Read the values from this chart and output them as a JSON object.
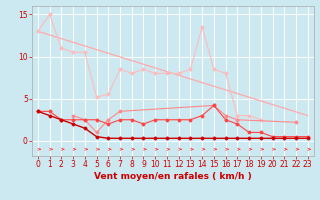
{
  "x": [
    0,
    1,
    2,
    3,
    4,
    5,
    6,
    7,
    8,
    9,
    10,
    11,
    12,
    13,
    14,
    15,
    16,
    17,
    18,
    19,
    20,
    21,
    22,
    23
  ],
  "line_lightest": [
    13.0,
    15.0,
    11.0,
    10.5,
    10.5,
    5.2,
    5.5,
    8.5,
    8.0,
    8.5,
    8.0,
    8.0,
    8.0,
    8.5,
    13.5,
    8.5,
    8.0,
    3.0,
    3.0,
    2.5,
    null,
    null,
    null,
    null
  ],
  "line_light": [
    null,
    null,
    null,
    3.0,
    2.5,
    1.0,
    2.5,
    3.5,
    null,
    null,
    null,
    null,
    null,
    null,
    null,
    4.2,
    3.0,
    2.5,
    null,
    null,
    null,
    null,
    2.2,
    null
  ],
  "line_medium": [
    3.5,
    3.5,
    2.5,
    2.5,
    2.5,
    2.5,
    2.0,
    2.5,
    2.5,
    2.0,
    2.5,
    2.5,
    2.5,
    2.5,
    3.0,
    4.2,
    2.5,
    2.0,
    1.0,
    1.0,
    0.5,
    0.5,
    0.5,
    0.5
  ],
  "line_trend_x": [
    0,
    23
  ],
  "line_trend_y": [
    13.0,
    3.0
  ],
  "line_dark": [
    3.5,
    3.0,
    2.5,
    2.0,
    1.5,
    0.5,
    0.3,
    0.3,
    0.3,
    0.3,
    0.3,
    0.3,
    0.3,
    0.3,
    0.3,
    0.3,
    0.3,
    0.3,
    0.3,
    0.3,
    0.3,
    0.3,
    0.3,
    0.3
  ],
  "xlabel": "Vent moyen/en rafales ( km/h )",
  "ylim": [
    -1.8,
    16
  ],
  "xlim": [
    -0.5,
    23.5
  ],
  "bg_color": "#cce8f0",
  "grid_color": "#ffffff",
  "color_lightest": "#ffbbbb",
  "color_light": "#ff8888",
  "color_medium": "#ff4444",
  "color_dark": "#cc0000",
  "color_trend": "#ffaaaa",
  "arrow_color": "#ff4444",
  "yticks": [
    0,
    5,
    10,
    15
  ],
  "xticks": [
    0,
    1,
    2,
    3,
    4,
    5,
    6,
    7,
    8,
    9,
    10,
    11,
    12,
    13,
    14,
    15,
    16,
    17,
    18,
    19,
    20,
    21,
    22,
    23
  ],
  "tick_fontsize": 5.5,
  "xlabel_fontsize": 6.5
}
